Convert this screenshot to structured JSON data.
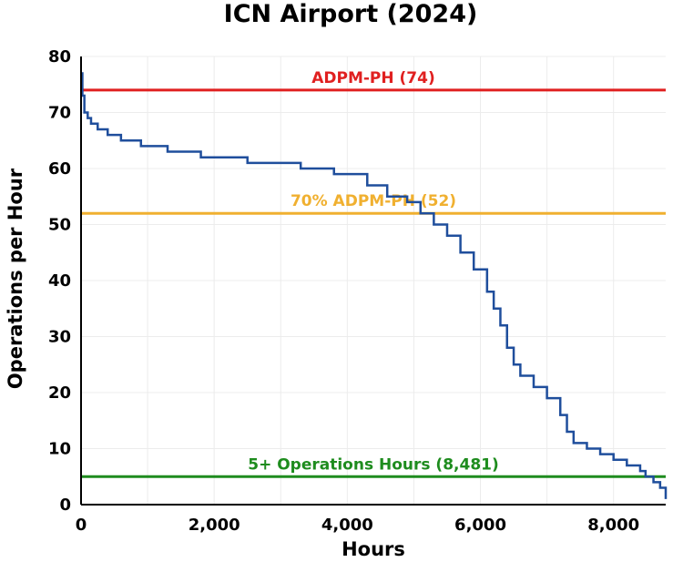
{
  "chart_data": {
    "type": "line",
    "title": "ICN Airport (2024)",
    "xlabel": "Hours",
    "ylabel": "Operations per Hour",
    "xlim": [
      0,
      8784
    ],
    "ylim": [
      0,
      80
    ],
    "xticks": [
      0,
      2000,
      4000,
      6000,
      8000
    ],
    "xtick_labels": [
      "0",
      "2,000",
      "4,000",
      "6,000",
      "8,000"
    ],
    "yticks": [
      0,
      10,
      20,
      30,
      40,
      50,
      60,
      70,
      80
    ],
    "ytick_labels": [
      "0",
      "10",
      "20",
      "30",
      "40",
      "50",
      "60",
      "70",
      "80"
    ],
    "grid": true,
    "series": [
      {
        "color": "#1f4e9c",
        "x": [
          0,
          20,
          50,
          100,
          150,
          250,
          400,
          600,
          900,
          1300,
          1800,
          2500,
          3300,
          3800,
          4300,
          4600,
          4900,
          5100,
          5300,
          5500,
          5700,
          5900,
          6100,
          6200,
          6300,
          6400,
          6500,
          6600,
          6800,
          7000,
          7200,
          7300,
          7400,
          7600,
          7800,
          8000,
          8200,
          8400,
          8481,
          8600,
          8700,
          8784
        ],
        "y": [
          77,
          73,
          70,
          69,
          68,
          67,
          66,
          65,
          64,
          63,
          62,
          61,
          60,
          59,
          57,
          55,
          54,
          52,
          50,
          48,
          45,
          42,
          38,
          35,
          32,
          28,
          25,
          23,
          21,
          19,
          16,
          13,
          11,
          10,
          9,
          8,
          7,
          6,
          5,
          4,
          3,
          1
        ]
      }
    ],
    "reference_lines": [
      {
        "label": "ADPM-PH (74)",
        "y": 74,
        "color": "#e02020"
      },
      {
        "label": "70% ADPM-PH (52)",
        "y": 52,
        "color": "#f0b030"
      },
      {
        "label": "5+ Operations Hours (8,481)",
        "y": 5,
        "color": "#1e8c1e"
      }
    ]
  }
}
